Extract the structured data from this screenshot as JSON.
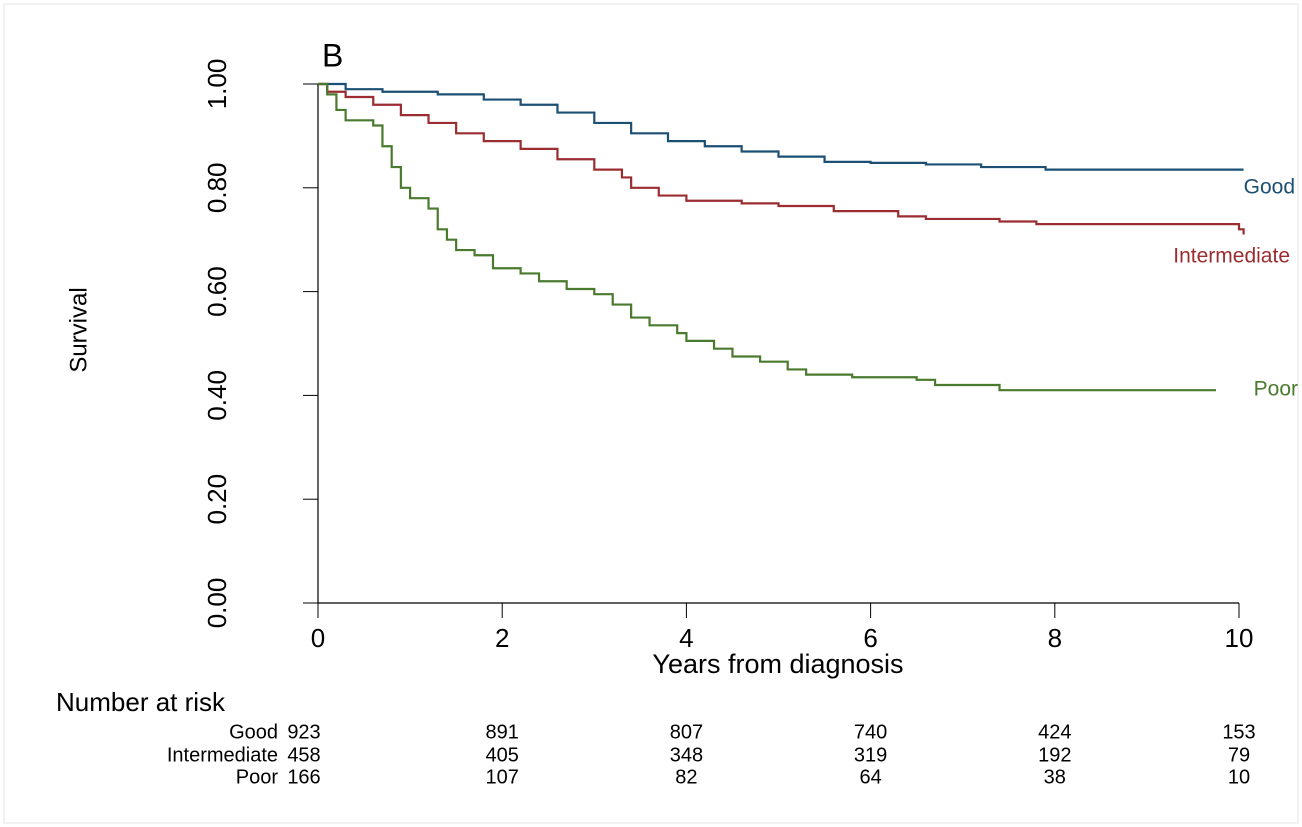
{
  "chart_data": {
    "type": "line",
    "drawstyle": "steps-post",
    "panel_label": "B",
    "xlabel": "Years from diagnosis",
    "ylabel": "Survival",
    "xlim": [
      0,
      10
    ],
    "xticks": [
      0,
      2,
      4,
      6,
      8,
      10
    ],
    "ylim": [
      0,
      1
    ],
    "yticks": [
      {
        "value": 0,
        "label": "0.00"
      },
      {
        "value": 0.2,
        "label": "0.20"
      },
      {
        "value": 0.4,
        "label": "0.40"
      },
      {
        "value": 0.6,
        "label": "0.60"
      },
      {
        "value": 0.8,
        "label": "0.80"
      },
      {
        "value": 1,
        "label": "1.00"
      }
    ],
    "series": [
      {
        "name": "Good",
        "color": "#1c4f74",
        "x": [
          0,
          0.3,
          0.7,
          1.3,
          1.8,
          2.2,
          2.6,
          3.0,
          3.4,
          3.8,
          4.2,
          4.6,
          5.0,
          5.5,
          6.0,
          6.6,
          7.2,
          7.9,
          10.05
        ],
        "values": [
          1.0,
          0.99,
          0.985,
          0.98,
          0.97,
          0.96,
          0.945,
          0.925,
          0.905,
          0.89,
          0.88,
          0.87,
          0.86,
          0.85,
          0.848,
          0.845,
          0.84,
          0.835,
          0.835
        ]
      },
      {
        "name": "Intermediate",
        "color": "#9b2d30",
        "x": [
          0,
          0.1,
          0.3,
          0.6,
          0.9,
          1.2,
          1.5,
          1.8,
          2.2,
          2.6,
          3.0,
          3.3,
          3.4,
          3.7,
          4.0,
          4.6,
          5.0,
          5.6,
          6.3,
          6.6,
          7.4,
          7.8,
          10.0,
          10.05
        ],
        "values": [
          1.0,
          0.985,
          0.975,
          0.96,
          0.94,
          0.925,
          0.905,
          0.89,
          0.875,
          0.855,
          0.835,
          0.82,
          0.8,
          0.785,
          0.775,
          0.77,
          0.765,
          0.755,
          0.745,
          0.74,
          0.735,
          0.73,
          0.72,
          0.71
        ]
      },
      {
        "name": "Poor",
        "color": "#4a7a2e",
        "x": [
          0,
          0.1,
          0.2,
          0.3,
          0.6,
          0.7,
          0.8,
          0.9,
          1.0,
          1.2,
          1.3,
          1.4,
          1.5,
          1.7,
          1.9,
          2.2,
          2.4,
          2.7,
          3.0,
          3.2,
          3.4,
          3.6,
          3.9,
          4.0,
          4.3,
          4.5,
          4.8,
          5.1,
          5.3,
          5.8,
          6.5,
          6.7,
          7.4,
          9.75
        ],
        "values": [
          1.0,
          0.98,
          0.95,
          0.93,
          0.92,
          0.88,
          0.84,
          0.8,
          0.78,
          0.76,
          0.72,
          0.7,
          0.68,
          0.67,
          0.645,
          0.635,
          0.62,
          0.605,
          0.595,
          0.575,
          0.55,
          0.535,
          0.52,
          0.505,
          0.49,
          0.475,
          0.465,
          0.45,
          0.44,
          0.435,
          0.43,
          0.42,
          0.41,
          0.41
        ]
      }
    ],
    "risk_table": {
      "title": "Number at risk",
      "rows": [
        {
          "label": "Good",
          "values": [
            923,
            891,
            807,
            740,
            424,
            153
          ]
        },
        {
          "label": "Intermediate",
          "values": [
            458,
            405,
            348,
            319,
            192,
            79
          ]
        },
        {
          "label": "Poor",
          "values": [
            166,
            107,
            82,
            64,
            38,
            10
          ]
        }
      ]
    }
  }
}
